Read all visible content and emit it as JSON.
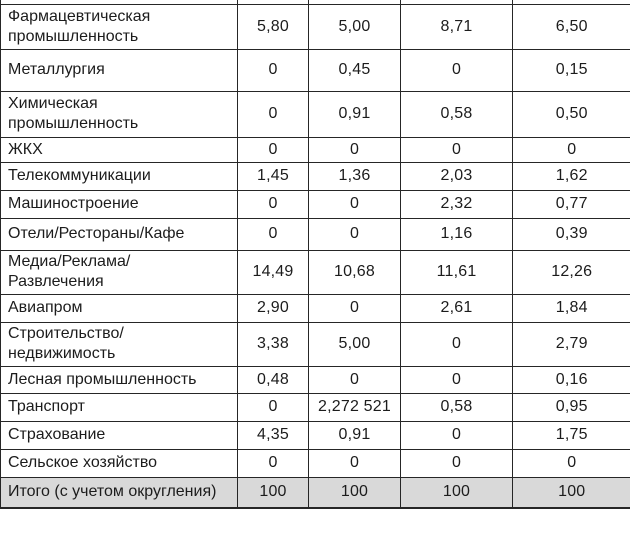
{
  "chart_data": {
    "type": "table",
    "note_visible_structure": "cropped table fragment: no column headers visible, first column = industry name, four numeric value columns",
    "rows": [
      {
        "label": "Фармацевтическая\nпромышленность",
        "values": [
          "5,80",
          "5,00",
          "8,71",
          "6,50"
        ]
      },
      {
        "label": "Металлургия",
        "values": [
          "0",
          "0,45",
          "0",
          "0,15"
        ]
      },
      {
        "label": "Химическая\nпромышленность",
        "values": [
          "0",
          "0,91",
          "0,58",
          "0,50"
        ]
      },
      {
        "label": "ЖКХ",
        "values": [
          "0",
          "0",
          "0",
          "0"
        ]
      },
      {
        "label": "Телекоммуникации",
        "values": [
          "1,45",
          "1,36",
          "2,03",
          "1,62"
        ]
      },
      {
        "label": "Машиностроение",
        "values": [
          "0",
          "0",
          "2,32",
          "0,77"
        ]
      },
      {
        "label": "Отели/Рестораны/Кафе",
        "values": [
          "0",
          "0",
          "1,16",
          "0,39"
        ]
      },
      {
        "label": "Медиа/Реклама/\nРазвлечения",
        "values": [
          "14,49",
          "10,68",
          "11,61",
          "12,26"
        ]
      },
      {
        "label": "Авиапром",
        "values": [
          "2,90",
          "0",
          "2,61",
          "1,84"
        ]
      },
      {
        "label": "Строительство/\nнедвижимость",
        "values": [
          "3,38",
          "5,00",
          "0",
          "2,79"
        ]
      },
      {
        "label": "Лесная промышленность",
        "values": [
          "0,48",
          "0",
          "0",
          "0,16"
        ]
      },
      {
        "label": "Транспорт",
        "values": [
          "0",
          "2,272 521",
          "0,58",
          "0,95"
        ]
      },
      {
        "label": "Страхование",
        "values": [
          "4,35",
          "0,91",
          "0",
          "1,75"
        ]
      },
      {
        "label": "Сельское хозяйство",
        "values": [
          "0",
          "0",
          "0",
          "0"
        ]
      }
    ],
    "total_row": {
      "label": "Итого (с учетом округления)",
      "values": [
        "100",
        "100",
        "100",
        "100"
      ]
    }
  },
  "colors": {
    "border": "#262626",
    "text": "#1c1c1c",
    "total_row_background": "#d9d9d9",
    "page_background": "#ffffff"
  }
}
